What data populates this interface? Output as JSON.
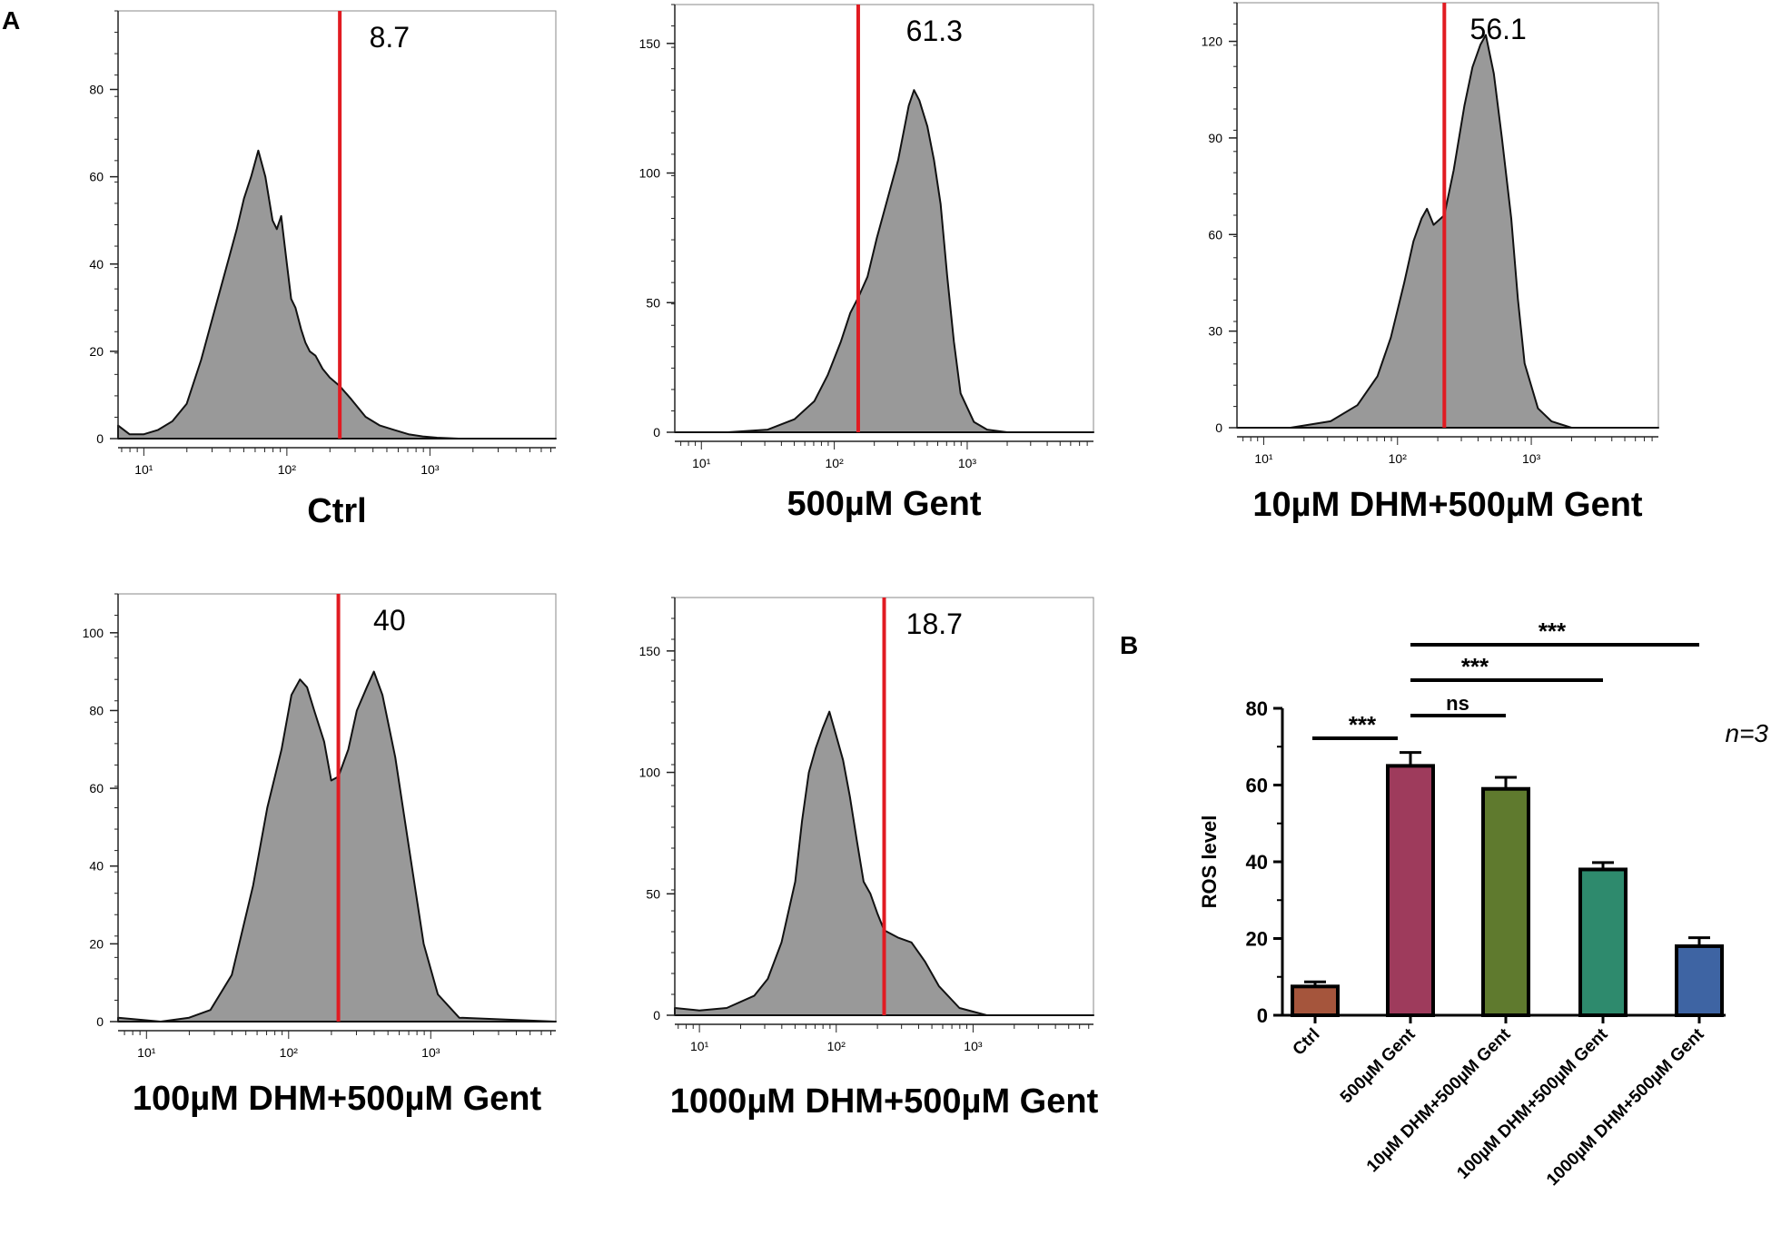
{
  "figure": {
    "panel_a_label": "A",
    "panel_b_label": "B"
  },
  "colors": {
    "hist_fill": "#999999",
    "gate": "#e11b22",
    "axis": "#222222"
  },
  "chart_data": [
    {
      "type": "area",
      "panel": "A",
      "id": "ctrl",
      "title": "Ctrl",
      "gate_percent": "8.7",
      "yticks": [
        "0",
        "20",
        "40",
        "60",
        "80"
      ],
      "ylim": [
        0,
        98
      ],
      "xticks": [
        "10¹",
        "10²",
        "10³"
      ],
      "xlim_log10": [
        0.82,
        3.88
      ],
      "gate_log10": 2.37,
      "x": [
        0.82,
        0.9,
        1.0,
        1.1,
        1.2,
        1.3,
        1.4,
        1.5,
        1.6,
        1.65,
        1.7,
        1.75,
        1.8,
        1.85,
        1.9,
        1.93,
        1.96,
        2.0,
        2.03,
        2.06,
        2.1,
        2.13,
        2.16,
        2.2,
        2.25,
        2.3,
        2.37,
        2.45,
        2.55,
        2.65,
        2.75,
        2.85,
        2.95,
        3.05,
        3.2,
        3.88
      ],
      "y": [
        3,
        1,
        1,
        2,
        4,
        8,
        18,
        30,
        42,
        48,
        55,
        60,
        66,
        60,
        50,
        48,
        51,
        40,
        32,
        30,
        25,
        22,
        20,
        19,
        16,
        14,
        12,
        9,
        5,
        3,
        2,
        1,
        0.5,
        0.2,
        0,
        0
      ]
    },
    {
      "type": "area",
      "panel": "A",
      "id": "gent500",
      "title": "500µM Gent",
      "gate_percent": "61.3",
      "yticks": [
        "0",
        "50",
        "100",
        "150"
      ],
      "ylim": [
        0,
        165
      ],
      "xticks": [
        "10¹",
        "10²",
        "10³"
      ],
      "xlim_log10": [
        0.8,
        3.95
      ],
      "gate_log10": 2.18,
      "x": [
        0.8,
        1.2,
        1.5,
        1.7,
        1.85,
        1.95,
        2.05,
        2.12,
        2.18,
        2.25,
        2.32,
        2.4,
        2.48,
        2.56,
        2.6,
        2.64,
        2.7,
        2.75,
        2.8,
        2.85,
        2.9,
        2.95,
        3.05,
        3.15,
        3.3,
        3.95
      ],
      "y": [
        0,
        0,
        1,
        5,
        12,
        22,
        35,
        46,
        52,
        60,
        75,
        90,
        105,
        126,
        132,
        128,
        118,
        105,
        88,
        60,
        35,
        15,
        4,
        1,
        0,
        0
      ]
    },
    {
      "type": "area",
      "panel": "A",
      "id": "dhm10",
      "title": "10µM DHM+500µM Gent",
      "gate_percent": "56.1",
      "yticks": [
        "0",
        "30",
        "60",
        "90",
        "120"
      ],
      "ylim": [
        0,
        132
      ],
      "xticks": [
        "10¹",
        "10²",
        "10³"
      ],
      "xlim_log10": [
        0.8,
        3.95
      ],
      "gate_log10": 2.35,
      "x": [
        0.8,
        1.2,
        1.5,
        1.7,
        1.85,
        1.95,
        2.05,
        2.12,
        2.18,
        2.22,
        2.27,
        2.35,
        2.42,
        2.5,
        2.56,
        2.62,
        2.66,
        2.72,
        2.78,
        2.85,
        2.9,
        2.95,
        3.05,
        3.15,
        3.3,
        3.95
      ],
      "y": [
        0,
        0,
        2,
        7,
        16,
        28,
        45,
        58,
        65,
        68,
        63,
        66,
        80,
        100,
        112,
        119,
        122,
        110,
        90,
        65,
        40,
        20,
        6,
        2,
        0,
        0
      ]
    },
    {
      "type": "area",
      "panel": "A",
      "id": "dhm100",
      "title": "100µM DHM+500µM Gent",
      "gate_percent": "40",
      "yticks": [
        "0",
        "20",
        "40",
        "60",
        "80",
        "100"
      ],
      "ylim": [
        0,
        110
      ],
      "xticks": [
        "10¹",
        "10²",
        "10³"
      ],
      "xlim_log10": [
        0.8,
        3.88
      ],
      "gate_log10": 2.35,
      "x": [
        0.8,
        1.1,
        1.3,
        1.45,
        1.6,
        1.75,
        1.85,
        1.95,
        2.02,
        2.08,
        2.13,
        2.18,
        2.25,
        2.3,
        2.35,
        2.42,
        2.48,
        2.55,
        2.6,
        2.66,
        2.75,
        2.85,
        2.95,
        3.05,
        3.2,
        3.88
      ],
      "y": [
        1,
        0,
        1,
        3,
        12,
        35,
        55,
        70,
        84,
        88,
        86,
        80,
        72,
        62,
        63,
        70,
        80,
        86,
        90,
        84,
        68,
        44,
        20,
        7,
        1,
        0
      ]
    },
    {
      "type": "area",
      "panel": "A",
      "id": "dhm1000",
      "title": "1000µM DHM+500µM Gent",
      "gate_percent": "18.7",
      "yticks": [
        "0",
        "50",
        "100",
        "150"
      ],
      "ylim": [
        0,
        172
      ],
      "xticks": [
        "10¹",
        "10²",
        "10³"
      ],
      "xlim_log10": [
        0.82,
        3.88
      ],
      "gate_log10": 2.35,
      "x": [
        0.82,
        1.0,
        1.2,
        1.4,
        1.5,
        1.6,
        1.7,
        1.75,
        1.8,
        1.85,
        1.9,
        1.95,
        2.0,
        2.05,
        2.1,
        2.15,
        2.2,
        2.25,
        2.3,
        2.35,
        2.45,
        2.55,
        2.65,
        2.75,
        2.9,
        3.1,
        3.88
      ],
      "y": [
        3,
        2,
        3,
        8,
        15,
        30,
        55,
        80,
        100,
        110,
        118,
        125,
        115,
        105,
        90,
        72,
        55,
        50,
        42,
        35,
        32,
        30,
        22,
        12,
        3,
        0,
        0
      ]
    },
    {
      "type": "bar",
      "panel": "B",
      "id": "ros",
      "ylabel": "ROS level",
      "ylim": [
        0,
        80
      ],
      "yticks": [
        "0",
        "20",
        "40",
        "60",
        "80"
      ],
      "categories": [
        "Ctrl",
        "500µM Gent",
        "10µM DHM+500µM Gent",
        "100µM DHM+500µM Gent",
        "1000µM DHM+500µM Gent"
      ],
      "values": [
        7.5,
        65,
        59,
        38,
        18
      ],
      "errors": [
        1.2,
        3.5,
        3.0,
        1.8,
        2.2
      ],
      "colors": [
        "#a5553c",
        "#9e3b5c",
        "#5f7a2e",
        "#2e8a6d",
        "#3e64a3"
      ],
      "annotation": "n=3",
      "significance": [
        {
          "from": 0,
          "to": 1,
          "label": "***"
        },
        {
          "from": 1,
          "to": 2,
          "label": "ns"
        },
        {
          "from": 1,
          "to": 3,
          "label": "***"
        },
        {
          "from": 1,
          "to": 4,
          "label": "***"
        }
      ]
    }
  ]
}
